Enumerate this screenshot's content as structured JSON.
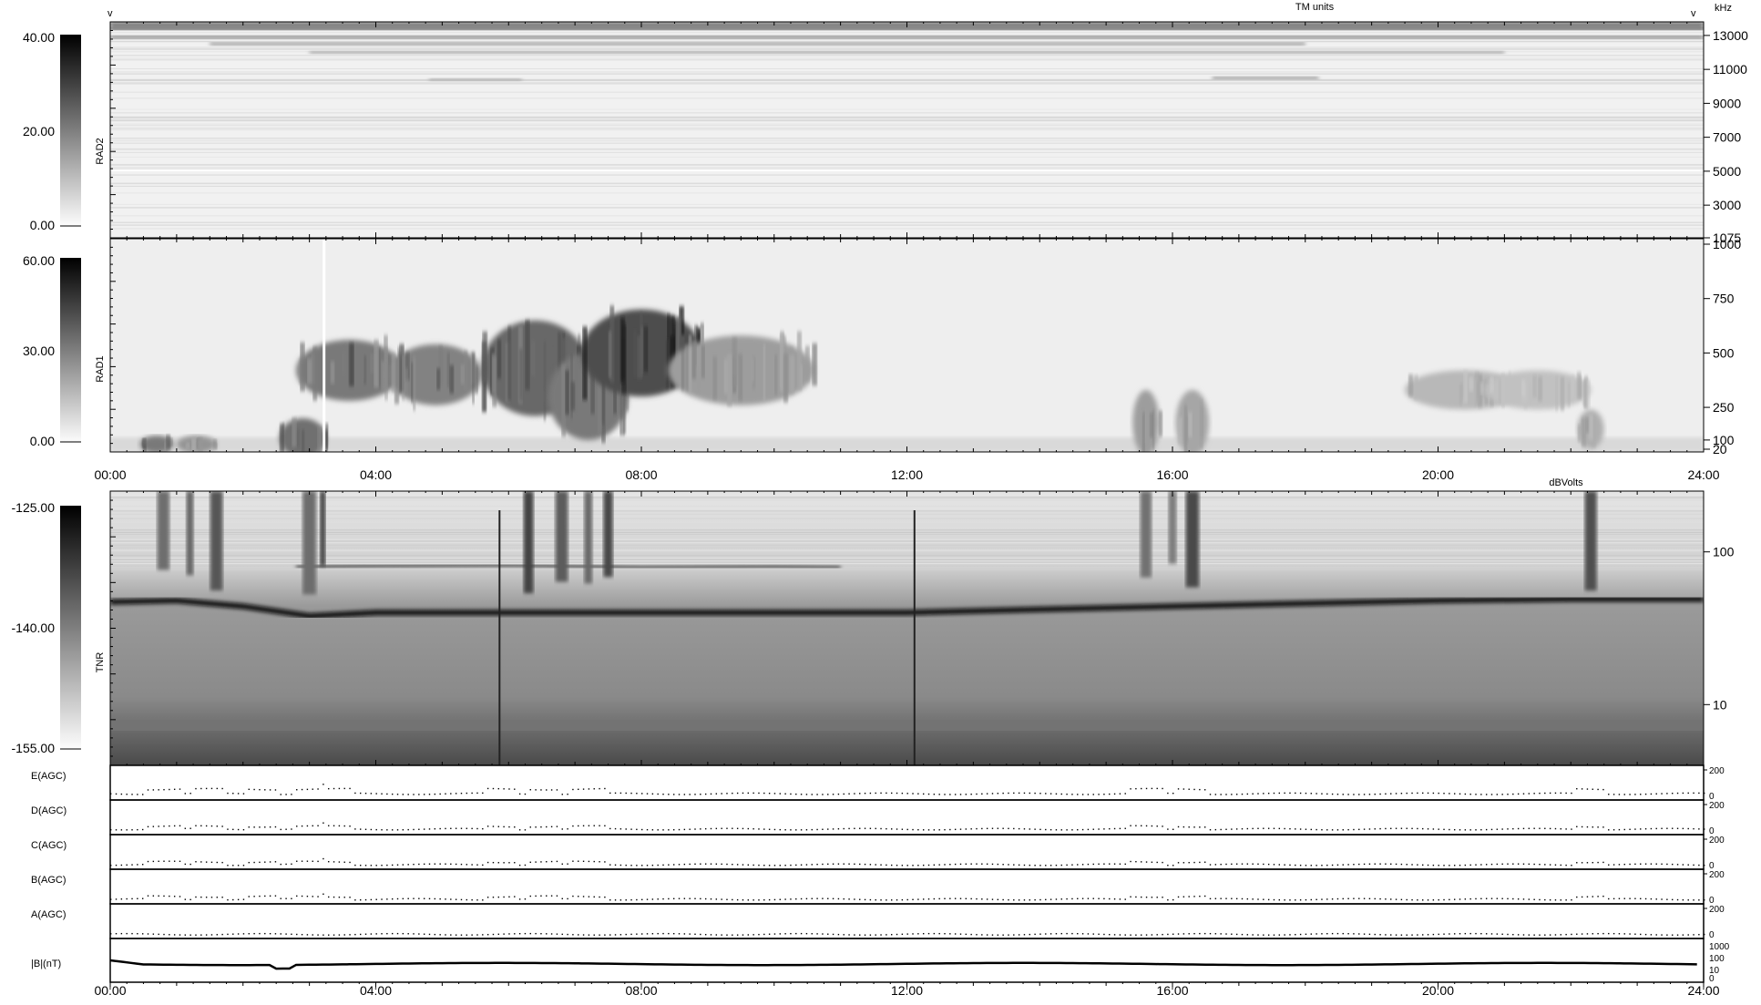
{
  "chart_data": {
    "type": "heatmap",
    "x_axis": {
      "ticks": [
        "00:00",
        "04:00",
        "08:00",
        "12:00",
        "16:00",
        "20:00",
        "24:00"
      ],
      "range_hours": [
        0,
        24
      ]
    },
    "corner_marks": {
      "left": "v",
      "right": "v"
    },
    "panels": [
      {
        "id": "rad2",
        "label": "RAD2",
        "right_unit": "kHz",
        "top_unit": "TM units",
        "colorbar": {
          "ticks": [
            "40.00",
            "20.00",
            "0.00"
          ],
          "range": [
            0,
            40
          ]
        },
        "y_ticks": [
          "13000",
          "11000",
          "9000",
          "7000",
          "5000",
          "3000",
          "1075"
        ],
        "y_range_khz": [
          1075,
          13800
        ],
        "bands": [
          {
            "f": 13400,
            "intensity": 0.7,
            "start": 0,
            "end": 24
          },
          {
            "f": 12900,
            "intensity": 0.55,
            "start": 0,
            "end": 24
          },
          {
            "f": 12500,
            "intensity": 0.45,
            "start": 1.5,
            "end": 18
          },
          {
            "f": 12000,
            "intensity": 0.4,
            "start": 3,
            "end": 21
          },
          {
            "f": 10400,
            "intensity": 0.35,
            "start": 4.8,
            "end": 6.2
          },
          {
            "f": 10500,
            "intensity": 0.45,
            "start": 16.6,
            "end": 18.2
          }
        ]
      },
      {
        "id": "rad1",
        "label": "RAD1",
        "colorbar": {
          "ticks": [
            "60.00",
            "30.00",
            "0.00"
          ],
          "range": [
            0,
            60
          ]
        },
        "y_ticks": [
          "1000",
          "750",
          "500",
          "250",
          "100",
          "20"
        ],
        "y_range_khz": [
          20,
          1000
        ],
        "blobs": [
          {
            "t": 0.7,
            "f": 80,
            "dt": 0.25,
            "df": 40,
            "v": 0.75
          },
          {
            "t": 1.3,
            "f": 80,
            "dt": 0.3,
            "df": 40,
            "v": 0.6
          },
          {
            "t": 2.9,
            "f": 110,
            "dt": 0.35,
            "df": 90,
            "v": 0.8
          },
          {
            "t": 3.6,
            "f": 420,
            "dt": 0.8,
            "df": 140,
            "v": 0.75
          },
          {
            "t": 4.9,
            "f": 400,
            "dt": 0.7,
            "df": 140,
            "v": 0.7
          },
          {
            "t": 6.4,
            "f": 430,
            "dt": 0.8,
            "df": 220,
            "v": 0.85
          },
          {
            "t": 7.2,
            "f": 300,
            "dt": 0.6,
            "df": 200,
            "v": 0.75
          },
          {
            "t": 8.0,
            "f": 500,
            "dt": 0.9,
            "df": 200,
            "v": 1.0
          },
          {
            "t": 9.5,
            "f": 420,
            "dt": 1.1,
            "df": 160,
            "v": 0.55
          },
          {
            "t": 15.6,
            "f": 180,
            "dt": 0.2,
            "df": 150,
            "v": 0.55
          },
          {
            "t": 16.3,
            "f": 180,
            "dt": 0.25,
            "df": 150,
            "v": 0.5
          },
          {
            "t": 20.4,
            "f": 330,
            "dt": 0.9,
            "df": 90,
            "v": 0.4
          },
          {
            "t": 21.5,
            "f": 330,
            "dt": 0.8,
            "df": 90,
            "v": 0.35
          },
          {
            "t": 22.3,
            "f": 150,
            "dt": 0.2,
            "df": 90,
            "v": 0.45
          }
        ]
      },
      {
        "id": "tnr",
        "label": "TNR",
        "top_unit": "dBVolts",
        "colorbar": {
          "ticks": [
            "-125.00",
            "-140.00",
            "-155.00"
          ],
          "range": [
            -155,
            -125
          ]
        },
        "y_ticks": [
          "100",
          "10"
        ],
        "y_range_khz": [
          4,
          250
        ],
        "plasma_line_khz": [
          [
            0,
            47
          ],
          [
            1,
            48
          ],
          [
            2,
            44
          ],
          [
            3,
            38
          ],
          [
            4,
            40
          ],
          [
            6,
            40
          ],
          [
            8,
            40
          ],
          [
            10,
            40
          ],
          [
            12,
            40
          ],
          [
            14,
            42
          ],
          [
            16,
            44
          ],
          [
            18,
            46
          ],
          [
            20,
            48
          ],
          [
            22,
            49
          ],
          [
            24,
            49
          ]
        ],
        "upper_line_khz": [
          [
            2.8,
            80
          ],
          [
            4,
            81
          ],
          [
            6,
            82
          ],
          [
            8,
            79
          ],
          [
            10,
            80
          ],
          [
            11,
            79
          ]
        ],
        "storm_columns_hours": [
          0.8,
          1.2,
          1.6,
          3.0,
          3.2,
          6.3,
          6.8,
          7.2,
          7.5,
          15.6,
          16.0,
          16.3,
          22.3
        ],
        "vertical_lines_hours": [
          5.85,
          12.1
        ]
      }
    ],
    "agc": {
      "channels": [
        "E(AGC)",
        "D(AGC)",
        "C(AGC)",
        "B(AGC)",
        "A(AGC)"
      ],
      "y_ticks": [
        "200",
        "0"
      ],
      "baseline": [
        18,
        12,
        5,
        5,
        2
      ],
      "spikes_hours": [
        0.8,
        1.5,
        2.3,
        3.0,
        3.4,
        5.9,
        6.5,
        7.2,
        15.6,
        16.3,
        22.3
      ]
    },
    "magnetic": {
      "label": "|B|(nT)",
      "y_ticks": [
        "1000",
        "100",
        "10",
        "0"
      ],
      "level_nt": 8
    }
  }
}
